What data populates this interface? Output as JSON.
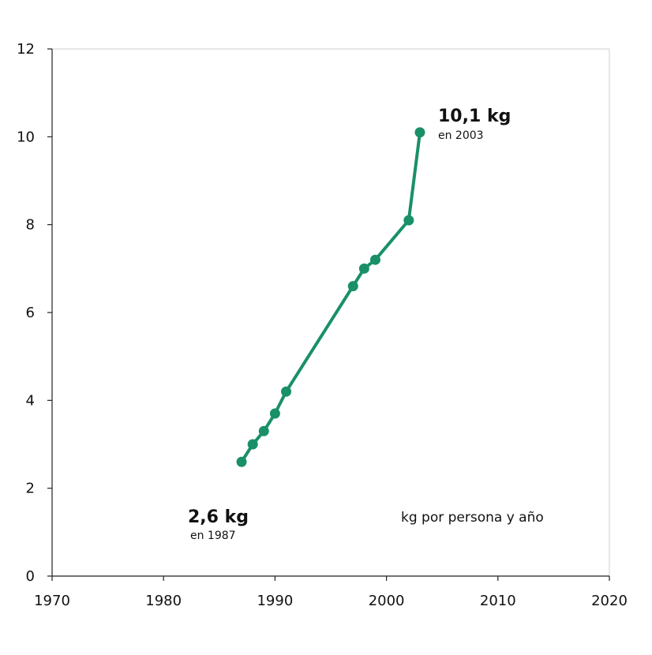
{
  "chart_data": {
    "type": "line",
    "title": "",
    "xlabel": "",
    "ylabel": "",
    "unit_label": "kg por persona y año",
    "xlim": [
      1970,
      2020
    ],
    "ylim": [
      0,
      12
    ],
    "x_ticks": [
      1970,
      1980,
      1990,
      2000,
      2010,
      2020
    ],
    "y_ticks": [
      0,
      2,
      4,
      6,
      8,
      10,
      12
    ],
    "grid": false,
    "line_color": "#1a9068",
    "series": [
      {
        "x": [
          1987,
          1988,
          1989,
          1990,
          1991,
          1997,
          1998,
          1999,
          2002,
          2003
        ],
        "values": [
          2.6,
          3.0,
          3.3,
          3.7,
          4.2,
          6.6,
          7.0,
          7.2,
          8.1,
          10.1
        ]
      }
    ],
    "annotations": [
      {
        "text": "2,6 kg",
        "subtext": "en 1987"
      },
      {
        "text": "10,1 kg",
        "subtext": "en 2003"
      }
    ]
  }
}
